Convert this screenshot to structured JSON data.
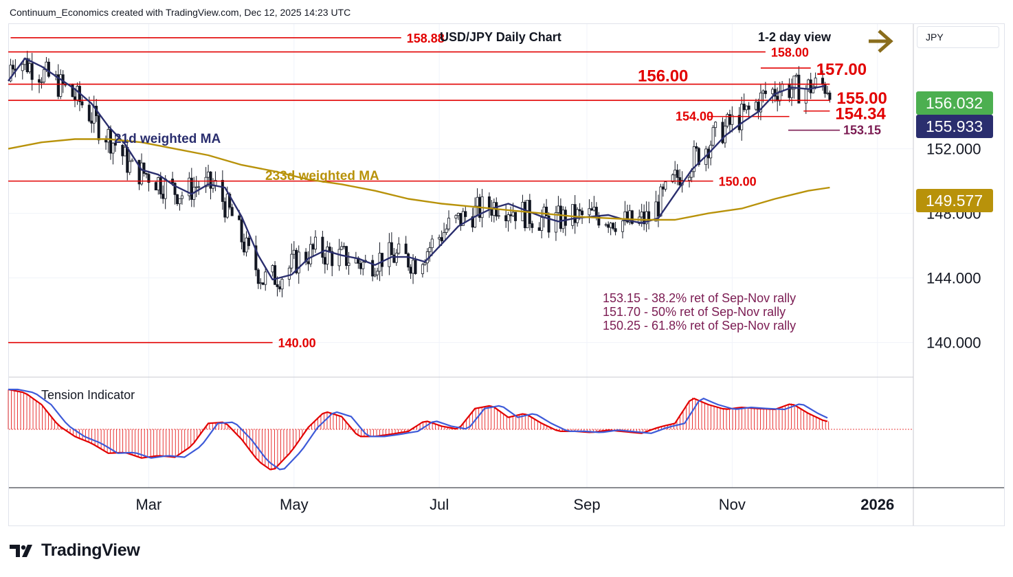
{
  "attribution": "Continuum_Economics created with TradingView.com, Dec 12, 2025 14:23 UTC",
  "currency": "JPY",
  "brand": "TradingView",
  "chart_data": {
    "type": "line",
    "title": "USD/JPY Daily Chart",
    "subtitle": "1-2 day view",
    "view_arrow": "right-arrow",
    "x_labels": [
      "Mar",
      "May",
      "Jul",
      "Sep",
      "Nov",
      "2026"
    ],
    "y_ticks": [
      "152.000",
      "148.000",
      "144.000",
      "140.000"
    ],
    "ylim": [
      137.9,
      159.6
    ],
    "price_badges": [
      {
        "label": "156.032",
        "color": "#4caf50"
      },
      {
        "label": "155.933",
        "color": "#2a2e6e"
      },
      {
        "label": "149.577",
        "color": "#b8920a"
      }
    ],
    "levels": [
      {
        "value": 158.88,
        "label": "158.88",
        "start_x": "Jan 2",
        "end_x": "Jun 15"
      },
      {
        "value": 158.0,
        "label": "158.00",
        "start_x": "Jan 1",
        "end_x": "Nov 15"
      },
      {
        "value": 157.0,
        "label": "157.00",
        "start_x": "Nov 13",
        "end_x": "Dec 4"
      },
      {
        "value": 156.0,
        "label": "156.00",
        "start_x": "Jan 1",
        "end_x": "Dec 12"
      },
      {
        "value": 155.0,
        "label": "155.00",
        "start_x": "Jan 1",
        "end_x": "Dec 12"
      },
      {
        "value": 154.34,
        "label": "154.34",
        "start_x": "Dec 1",
        "end_x": "Dec 12"
      },
      {
        "value": 154.0,
        "label": "154.00",
        "start_x": "Oct 22",
        "end_x": "Nov 25"
      },
      {
        "value": 150.0,
        "label": "150.00",
        "start_x": "Jan 1",
        "end_x": "Oct 24"
      },
      {
        "value": 140.0,
        "label": "140.00",
        "start_x": "Jan 1",
        "end_x": "Apr 22"
      }
    ],
    "retracement": {
      "value": 153.15,
      "label": "153.15",
      "color": "#7b1b52"
    },
    "notes": [
      "153.15 - 38.2% ret of Sep-Nov rally",
      "151.70 - 50% ret of Sep-Nov rally",
      "150.25 - 61.8% ret of Sep-Nov rally"
    ],
    "series": [
      {
        "name": "21d weighted MA",
        "color": "#2a2e6e",
        "x": [
          "Jan 1",
          "Jan 8",
          "Jan 15",
          "Jan 22",
          "Jan 29",
          "Feb 5",
          "Feb 12",
          "Feb 19",
          "Feb 26",
          "Mar 5",
          "Mar 12",
          "Mar 19",
          "Mar 26",
          "Apr 2",
          "Apr 9",
          "Apr 16",
          "Apr 22",
          "Apr 30",
          "May 7",
          "May 14",
          "May 21",
          "May 28",
          "Jun 4",
          "Jun 11",
          "Jun 18",
          "Jun 25",
          "Jul 2",
          "Jul 9",
          "Jul 16",
          "Jul 23",
          "Jul 30",
          "Aug 6",
          "Aug 13",
          "Aug 20",
          "Aug 27",
          "Sep 3",
          "Sep 10",
          "Sep 17",
          "Sep 24",
          "Oct 1",
          "Oct 8",
          "Oct 15",
          "Oct 22",
          "Oct 29",
          "Nov 5",
          "Nov 12",
          "Nov 19",
          "Nov 26",
          "Dec 3",
          "Dec 10"
        ],
        "y": [
          156.2,
          157.6,
          157.1,
          156.4,
          155.7,
          154.8,
          153.4,
          152.3,
          150.7,
          150.4,
          149.7,
          149.2,
          149.8,
          149.6,
          147.8,
          145.4,
          143.9,
          144.2,
          145.2,
          145.7,
          145.4,
          145.2,
          144.8,
          145.3,
          145.3,
          145.0,
          146.1,
          147.2,
          147.8,
          148.3,
          148.6,
          148.2,
          147.8,
          147.5,
          147.7,
          147.8,
          147.9,
          147.6,
          147.4,
          147.7,
          149.2,
          150.7,
          151.7,
          152.8,
          153.6,
          154.3,
          155.4,
          155.8,
          155.7,
          155.9
        ]
      },
      {
        "name": "233d weighted MA",
        "color": "#b8920a",
        "x": [
          "Jan 1",
          "Jan 15",
          "Jan 29",
          "Feb 12",
          "Feb 26",
          "Mar 12",
          "Mar 26",
          "Apr 9",
          "Apr 23",
          "May 7",
          "May 21",
          "Jun 4",
          "Jun 18",
          "Jul 2",
          "Jul 16",
          "Jul 30",
          "Aug 13",
          "Aug 27",
          "Sep 10",
          "Sep 24",
          "Oct 8",
          "Oct 22",
          "Nov 5",
          "Nov 19",
          "Dec 3",
          "Dec 12"
        ],
        "y": [
          152.0,
          152.4,
          152.6,
          152.6,
          152.4,
          152.0,
          151.6,
          151.0,
          150.6,
          150.1,
          149.8,
          149.4,
          148.9,
          148.6,
          148.4,
          148.2,
          148.0,
          147.8,
          147.7,
          147.6,
          147.6,
          148.0,
          148.3,
          148.9,
          149.4,
          149.6
        ]
      }
    ],
    "annotations": [
      "21d weighted MA",
      "233d weighted MA"
    ],
    "indicator": {
      "name": "Tension Indicator",
      "zero_line_color": "#e20000",
      "colors": {
        "histogram": "#e20000",
        "fast": "#e20000",
        "slow": "#3d5ad8"
      },
      "x": [
        "Jan 1",
        "Jan 8",
        "Jan 15",
        "Jan 22",
        "Jan 29",
        "Feb 5",
        "Feb 12",
        "Feb 19",
        "Feb 26",
        "Mar 5",
        "Mar 12",
        "Mar 19",
        "Mar 26",
        "Apr 2",
        "Apr 9",
        "Apr 16",
        "Apr 22",
        "Apr 30",
        "May 7",
        "May 14",
        "May 21",
        "May 28",
        "Jun 4",
        "Jun 11",
        "Jun 18",
        "Jun 25",
        "Jul 2",
        "Jul 9",
        "Jul 16",
        "Jul 23",
        "Jul 30",
        "Aug 6",
        "Aug 13",
        "Aug 20",
        "Aug 27",
        "Sep 3",
        "Sep 10",
        "Sep 17",
        "Sep 24",
        "Oct 1",
        "Oct 8",
        "Oct 15",
        "Oct 22",
        "Oct 29",
        "Nov 5",
        "Nov 12",
        "Nov 19",
        "Nov 26",
        "Dec 3",
        "Dec 10"
      ],
      "values": [
        1.0,
        0.92,
        0.62,
        0.1,
        -0.18,
        -0.35,
        -0.6,
        -0.58,
        -0.72,
        -0.66,
        -0.7,
        -0.42,
        0.15,
        0.18,
        -0.25,
        -0.8,
        -1.05,
        -0.55,
        0.05,
        0.45,
        0.32,
        -0.18,
        -0.18,
        -0.12,
        -0.05,
        0.22,
        0.08,
        0.0,
        0.52,
        0.6,
        0.3,
        0.4,
        0.15,
        -0.05,
        -0.05,
        -0.08,
        -0.02,
        -0.06,
        -0.1,
        0.05,
        0.15,
        0.8,
        0.62,
        0.5,
        0.55,
        0.52,
        0.5,
        0.65,
        0.4,
        0.2
      ]
    }
  }
}
